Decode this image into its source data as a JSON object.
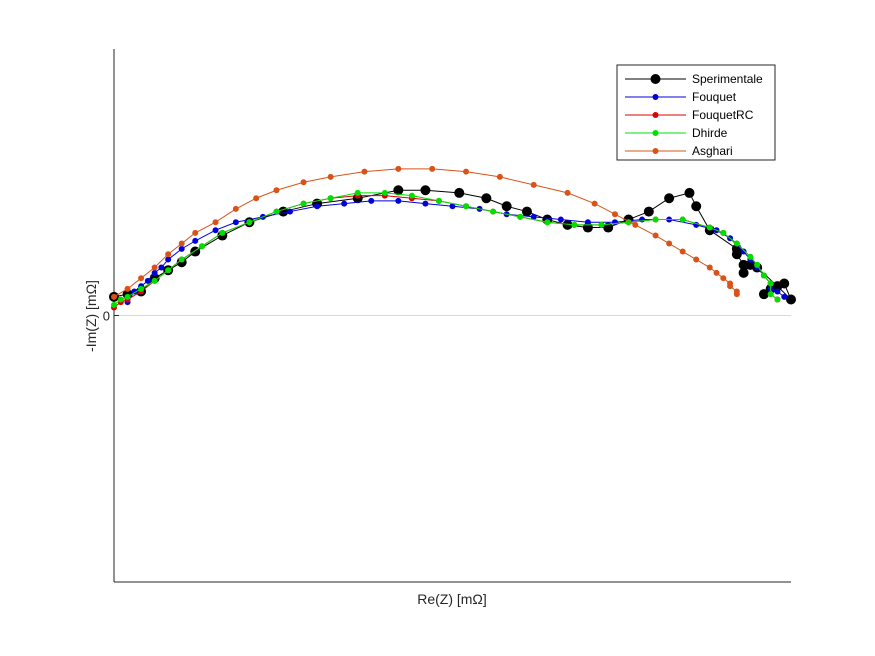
{
  "chart_data": {
    "type": "line",
    "xlabel": "Re(Z) [mΩ]",
    "ylabel": "-Im(Z) [mΩ]",
    "xlim": [
      0,
      100
    ],
    "ylim": [
      -100,
      100
    ],
    "yticks": [
      {
        "value": 0,
        "label": "0"
      }
    ],
    "zero_line": true,
    "grid": false,
    "legend_position": "top-right",
    "series": [
      {
        "name": "Sperimentale",
        "color": "#000000",
        "marker_size": 5,
        "points": [
          [
            0,
            7
          ],
          [
            2,
            8
          ],
          [
            4,
            9
          ],
          [
            6,
            14
          ],
          [
            8,
            17
          ],
          [
            10,
            20
          ],
          [
            12,
            24
          ],
          [
            16,
            30
          ],
          [
            20,
            35
          ],
          [
            25,
            39
          ],
          [
            30,
            42
          ],
          [
            36,
            44
          ],
          [
            42,
            47
          ],
          [
            46,
            47
          ],
          [
            51,
            46
          ],
          [
            55,
            44
          ],
          [
            58,
            41
          ],
          [
            61,
            39
          ],
          [
            64,
            36
          ],
          [
            67,
            34
          ],
          [
            70,
            33
          ],
          [
            73,
            33
          ],
          [
            76,
            36
          ],
          [
            79,
            39
          ],
          [
            82,
            44
          ],
          [
            85,
            46
          ],
          [
            86,
            41
          ],
          [
            88,
            32
          ],
          [
            92,
            25
          ],
          [
            92,
            23
          ],
          [
            93,
            19
          ],
          [
            93,
            16
          ],
          [
            94,
            19
          ],
          [
            95,
            18
          ],
          [
            98,
            11
          ],
          [
            100,
            6
          ],
          [
            99,
            12
          ],
          [
            97,
            10
          ],
          [
            96,
            8
          ]
        ]
      },
      {
        "name": "Fouquet",
        "color": "#0000dd",
        "marker_size": 3,
        "points": [
          [
            2,
            5
          ],
          [
            3,
            9
          ],
          [
            4,
            11
          ],
          [
            5,
            13
          ],
          [
            6,
            16
          ],
          [
            7,
            18
          ],
          [
            8,
            21
          ],
          [
            10,
            25
          ],
          [
            12,
            28
          ],
          [
            15,
            32
          ],
          [
            18,
            35
          ],
          [
            22,
            37
          ],
          [
            26,
            39
          ],
          [
            30,
            41
          ],
          [
            34,
            42
          ],
          [
            38,
            43
          ],
          [
            42,
            43
          ],
          [
            46,
            42
          ],
          [
            50,
            41
          ],
          [
            54,
            40
          ],
          [
            58,
            38
          ],
          [
            62,
            37
          ],
          [
            66,
            36
          ],
          [
            70,
            35
          ],
          [
            74,
            35
          ],
          [
            78,
            36
          ],
          [
            82,
            36
          ],
          [
            86,
            34
          ],
          [
            89,
            32
          ],
          [
            91,
            29
          ],
          [
            93,
            24
          ],
          [
            94,
            21
          ],
          [
            95,
            18
          ],
          [
            96,
            15
          ],
          [
            97,
            12
          ],
          [
            97,
            10
          ],
          [
            98,
            9
          ],
          [
            99,
            7
          ]
        ]
      },
      {
        "name": "FouquetRC",
        "color": "#dd0000",
        "marker_size": 3,
        "points": [
          [
            0,
            3
          ],
          [
            1,
            5
          ],
          [
            2,
            6
          ],
          [
            4,
            9
          ],
          [
            6,
            13
          ],
          [
            8,
            17
          ],
          [
            10,
            21
          ],
          [
            13,
            26
          ],
          [
            16,
            31
          ],
          [
            20,
            35
          ],
          [
            24,
            39
          ],
          [
            28,
            42
          ],
          [
            32,
            44
          ],
          [
            36,
            45
          ],
          [
            40,
            45
          ],
          [
            44,
            44
          ],
          [
            48,
            43
          ],
          [
            52,
            41
          ],
          [
            56,
            39
          ],
          [
            60,
            37
          ],
          [
            64,
            35
          ],
          [
            68,
            34
          ],
          [
            72,
            34
          ],
          [
            76,
            35
          ],
          [
            80,
            36
          ],
          [
            84,
            36
          ],
          [
            88,
            33
          ],
          [
            90,
            31
          ],
          [
            92,
            27
          ],
          [
            94,
            22
          ],
          [
            95,
            19
          ],
          [
            96,
            15
          ],
          [
            97,
            12
          ],
          [
            97,
            8
          ],
          [
            98,
            6
          ]
        ]
      },
      {
        "name": "Dhirde",
        "color": "#00e000",
        "marker_size": 3,
        "points": [
          [
            0,
            4
          ],
          [
            1,
            6
          ],
          [
            2,
            7
          ],
          [
            4,
            10
          ],
          [
            6,
            13
          ],
          [
            8,
            17
          ],
          [
            10,
            21
          ],
          [
            13,
            26
          ],
          [
            16,
            31
          ],
          [
            20,
            35
          ],
          [
            24,
            39
          ],
          [
            28,
            42
          ],
          [
            32,
            44
          ],
          [
            36,
            46
          ],
          [
            40,
            46
          ],
          [
            44,
            45
          ],
          [
            48,
            43
          ],
          [
            52,
            41
          ],
          [
            56,
            39
          ],
          [
            60,
            37
          ],
          [
            64,
            35
          ],
          [
            68,
            34
          ],
          [
            72,
            34
          ],
          [
            76,
            35
          ],
          [
            80,
            36
          ],
          [
            84,
            36
          ],
          [
            88,
            33
          ],
          [
            90,
            31
          ],
          [
            92,
            27
          ],
          [
            94,
            22
          ],
          [
            95,
            19
          ],
          [
            96,
            15
          ],
          [
            97,
            12
          ],
          [
            97,
            8
          ],
          [
            98,
            6
          ]
        ]
      },
      {
        "name": "Asghari",
        "color": "#d95319",
        "marker_size": 3,
        "points": [
          [
            0,
            7
          ],
          [
            2,
            10
          ],
          [
            4,
            14
          ],
          [
            6,
            18
          ],
          [
            8,
            23
          ],
          [
            10,
            27
          ],
          [
            12,
            31
          ],
          [
            15,
            35
          ],
          [
            18,
            40
          ],
          [
            21,
            44
          ],
          [
            24,
            47
          ],
          [
            28,
            50
          ],
          [
            32,
            52
          ],
          [
            37,
            54
          ],
          [
            42,
            55
          ],
          [
            47,
            55
          ],
          [
            52,
            54
          ],
          [
            57,
            52
          ],
          [
            62,
            49
          ],
          [
            67,
            46
          ],
          [
            71,
            42
          ],
          [
            74,
            38
          ],
          [
            77,
            34
          ],
          [
            80,
            30
          ],
          [
            82,
            27
          ],
          [
            84,
            24
          ],
          [
            86,
            21
          ],
          [
            88,
            18
          ],
          [
            89,
            16
          ],
          [
            90,
            14
          ],
          [
            91,
            12
          ],
          [
            91,
            11
          ],
          [
            92,
            9
          ],
          [
            92,
            8
          ]
        ]
      }
    ]
  }
}
